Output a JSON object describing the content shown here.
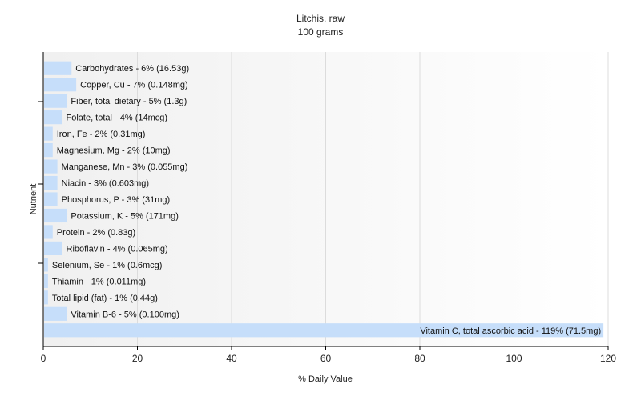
{
  "chart_data": {
    "type": "bar",
    "orientation": "horizontal",
    "title": "Litchis, raw",
    "subtitle": "100 grams",
    "xlabel": "% Daily Value",
    "ylabel": "Nutrient",
    "xlim": [
      0,
      120
    ],
    "xticks": [
      "0",
      "20",
      "40",
      "60",
      "80",
      "100",
      "120"
    ],
    "grid": true,
    "bar_color": "#c6defa",
    "categories": [
      "Carbohydrates",
      "Copper, Cu",
      "Fiber, total dietary",
      "Folate, total",
      "Iron, Fe",
      "Magnesium, Mg",
      "Manganese, Mn",
      "Niacin",
      "Phosphorus, P",
      "Potassium, K",
      "Protein",
      "Riboflavin",
      "Selenium, Se",
      "Thiamin",
      "Total lipid (fat)",
      "Vitamin B-6",
      "Vitamin C, total ascorbic acid"
    ],
    "values": [
      6,
      7,
      5,
      4,
      2,
      2,
      3,
      3,
      3,
      5,
      2,
      4,
      1,
      1,
      1,
      5,
      119
    ],
    "labels": [
      "Carbohydrates - 6% (16.53g)",
      "Copper, Cu - 7% (0.148mg)",
      "Fiber, total dietary - 5% (1.3g)",
      "Folate, total - 4% (14mcg)",
      "Iron, Fe - 2% (0.31mg)",
      "Magnesium, Mg - 2% (10mg)",
      "Manganese, Mn - 3% (0.055mg)",
      "Niacin - 3% (0.603mg)",
      "Phosphorus, P - 3% (31mg)",
      "Potassium, K - 5% (171mg)",
      "Protein - 2% (0.83g)",
      "Riboflavin - 4% (0.065mg)",
      "Selenium, Se - 1% (0.6mcg)",
      "Thiamin - 1% (0.011mg)",
      "Total lipid (fat) - 1% (0.44g)",
      "Vitamin B-6 - 5% (0.100mg)",
      "Vitamin C, total ascorbic acid - 119% (71.5mg)"
    ]
  }
}
